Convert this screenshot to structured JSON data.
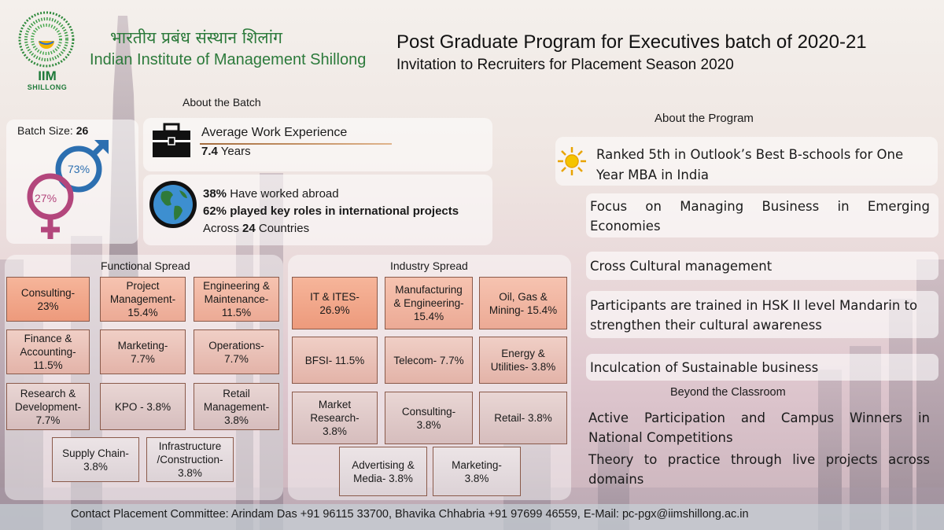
{
  "header": {
    "logo_line1": "IIM",
    "logo_line2": "SHILLONG",
    "institute_hindi": "भारतीय प्रबंध संस्थान शिलांग",
    "institute_english": "Indian Institute of Management Shillong",
    "title": "Post Graduate Program for Executives batch of 2020-21",
    "subtitle": "Invitation to Recruiters for Placement Season 2020"
  },
  "about_batch": {
    "heading": "About the Batch",
    "batch_size_label": "Batch Size: ",
    "batch_size_value": "26",
    "male_pct": "73%",
    "female_pct": "27%",
    "work_exp_label": "Average Work Experience",
    "work_exp_value": "7.4",
    "work_exp_unit": " Years",
    "abroad_pct": "38%",
    "abroad_text": " Have worked abroad",
    "intl_pct": "62% played key roles in international projects",
    "countries_prefix": "Across ",
    "countries_value": "24",
    "countries_suffix": " Countries"
  },
  "functional_spread": {
    "title": "Functional Spread",
    "cells": [
      "Consulting-\n23%",
      "Project\nManagement-\n15.4%",
      "Engineering &\nMaintenance-\n11.5%",
      "Finance &\nAccounting-\n11.5%",
      "Marketing-\n7.7%",
      "Operations-\n7.7%",
      "Research &\nDevelopment-\n7.7%",
      "KPO - 3.8%",
      "Retail\nManagement-\n3.8%",
      "Supply Chain-\n3.8%",
      "Infrastructure\n/Construction-\n3.8%"
    ]
  },
  "industry_spread": {
    "title": "Industry Spread",
    "cells": [
      "IT & ITES-\n26.9%",
      "Manufacturing\n& Engineering-\n15.4%",
      "Oil, Gas &\nMining- 15.4%",
      "BFSI- 11.5%",
      "Telecom- 7.7%",
      "Energy &\nUtilities- 3.8%",
      "Market\nResearch-\n3.8%",
      "Consulting-\n3.8%",
      "Retail- 3.8%",
      "Advertising &\nMedia- 3.8%",
      "Marketing-\n3.8%"
    ]
  },
  "about_program": {
    "heading": "About the Program",
    "ranking": "Ranked 5th in Outlook’s Best B-schools for One Year MBA in India",
    "points": [
      "Focus on Managing Business in Emerging Economies",
      "Cross Cultural management",
      "Participants are trained in HSK II level Mandarin to strengthen their cultural awareness",
      "Inculcation of Sustainable business"
    ]
  },
  "beyond_classroom": {
    "heading": "Beyond the Classroom",
    "points": [
      "Active Participation and Campus Winners in National Competitions",
      "Theory to practice through live projects across domains"
    ]
  },
  "footer": {
    "contact": "Contact Placement Committee: Arindam Das +91 96115 33700, Bhavika Chhabria +91 97699 46559, E-Mail: pc-pgx@iimshillong.ac.in"
  },
  "colors": {
    "brand_green": "#2c7a3b",
    "male_blue": "#2c6fb0",
    "female_pink": "#b3467c",
    "cell_dark": "#ed9a7c",
    "cell_light": "#dcd2d6"
  }
}
